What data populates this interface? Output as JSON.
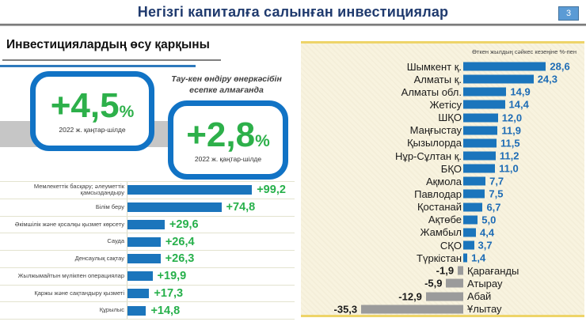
{
  "header": {
    "title": "Негізгі капиталға салынған инвестициялар",
    "page_number": "3"
  },
  "left_section": {
    "heading": "Инвестициялардың өсу қарқыны",
    "box_total": {
      "value": "+4,5",
      "percent_sign": "%",
      "period": "2022 ж. қаңтар-шілде"
    },
    "mining_note": "Тау-кен өндіру өнеркәсібін есепке алмағанда",
    "box_excl_mining": {
      "value": "+2,8",
      "percent_sign": "%",
      "period": "2022 ж. қаңтар-шілде"
    }
  },
  "colors": {
    "title_navy": "#1f3a6e",
    "box_border_blue": "#1173c5",
    "growth_green": "#2db04a",
    "bar_blue": "#1b75bc",
    "value_blue": "#1e6cb5",
    "bar_gray": "#9b9b9b",
    "panel_cream": "#f8f3df",
    "panel_border_yellow": "#eed468",
    "band_gray": "#c6c6c6",
    "badge_blue": "#5b9bd5"
  },
  "chart_data": [
    {
      "id": "sectors-growth",
      "type": "bar",
      "orientation": "horizontal",
      "title": "",
      "xlabel": "",
      "ylabel": "",
      "xlim": [
        0,
        110
      ],
      "grid": false,
      "legend": "none",
      "categories": [
        "Мемлекеттік басқару; әлеуметтік қамсыздандыру",
        "Білім беру",
        "Әкімшілік және қосалқы қызмет көрсету",
        "Сауда",
        "Денсаулық сақтау",
        "Жылжымайтын мүлікпен операциялар",
        "Қаржы және сақтандыру қызметі",
        "Құрылыс"
      ],
      "values": [
        99.2,
        74.8,
        29.6,
        26.4,
        26.3,
        19.9,
        17.3,
        14.8
      ],
      "value_labels": [
        "+99,2",
        "+74,8",
        "+29,6",
        "+26,4",
        "+26,3",
        "+19,9",
        "+17,3",
        "+14,8"
      ],
      "bar_color": "#1b75bc",
      "value_color": "#27b04b"
    },
    {
      "id": "regions-growth",
      "type": "bar",
      "orientation": "horizontal",
      "title": "",
      "note": "Өткен жылдың сәйкес кезеңіне %-пен",
      "xlim": [
        -40,
        32
      ],
      "grid": false,
      "legend": "none",
      "categories": [
        "Шымкент қ.",
        "Алматы қ.",
        "Алматы обл.",
        "Жетісу",
        "ШҚО",
        "Маңғыстау",
        "Қызылорда",
        "Нұр-Сұлтан қ.",
        "БҚО",
        "Ақмола",
        "Павлодар",
        "Қостанай",
        "Ақтөбе",
        "Жамбыл",
        "СҚО",
        "Түркістан",
        "Қарағанды",
        "Атырау",
        "Абай",
        "Ұлытау"
      ],
      "values": [
        28.6,
        24.3,
        14.9,
        14.4,
        12.0,
        11.9,
        11.5,
        11.2,
        11.0,
        7.7,
        7.5,
        6.7,
        5.0,
        4.4,
        3.7,
        1.4,
        -1.9,
        -5.9,
        -12.9,
        -35.3
      ],
      "value_labels": [
        "28,6",
        "24,3",
        "14,9",
        "14,4",
        "12,0",
        "11,9",
        "11,5",
        "11,2",
        "11,0",
        "7,7",
        "7,5",
        "6,7",
        "5,0",
        "4,4",
        "3,7",
        "1,4",
        "-1,9",
        "-5,9",
        "-12,9",
        "-35,3"
      ],
      "positive_color": "#1b75bc",
      "negative_color": "#9b9b9b"
    }
  ]
}
